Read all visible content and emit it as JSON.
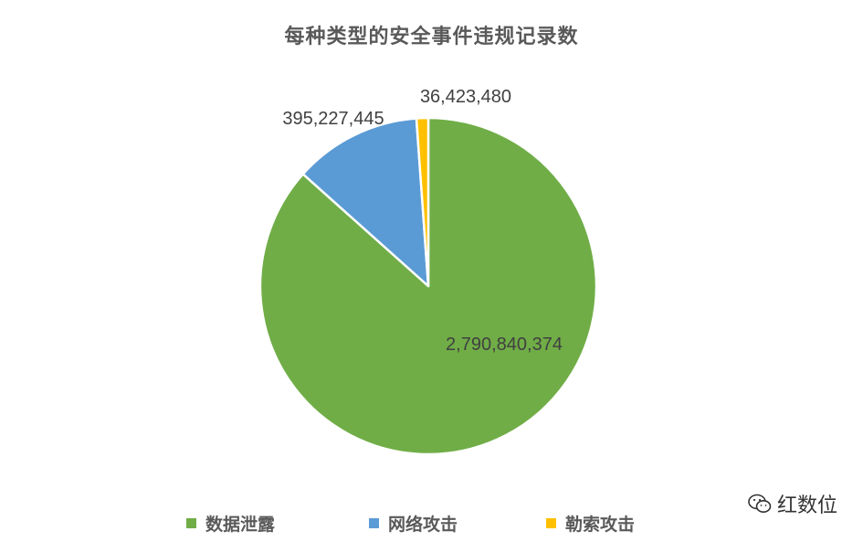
{
  "chart_data": {
    "type": "pie",
    "title": "每种类型的安全事件违规记录数",
    "categories": [
      "数据泄露",
      "网络攻击",
      "勒索攻击"
    ],
    "values": [
      2790840374,
      395227445,
      36423480
    ],
    "labels": [
      "2,790,840,374",
      "395,227,445",
      "36,423,480"
    ],
    "colors": [
      "#70AD47",
      "#5B9BD5",
      "#FFC000"
    ],
    "start_angle_deg": 0,
    "direction": "clockwise",
    "legend_position": "bottom"
  },
  "watermark": {
    "text": "红数位",
    "icon": "wechat-icon"
  }
}
